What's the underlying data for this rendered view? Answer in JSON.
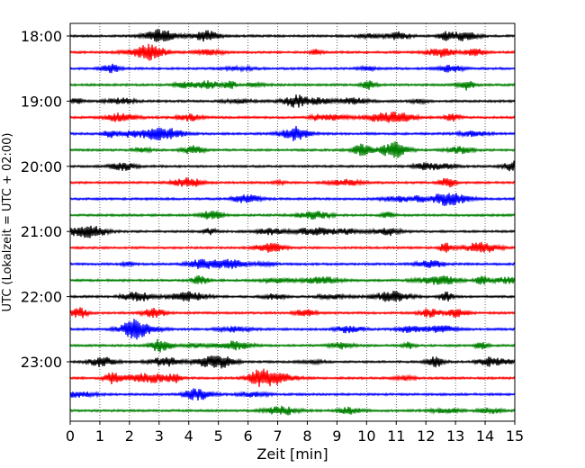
{
  "chart_data": {
    "type": "line",
    "title": "",
    "xlabel": "Zeit  [min]",
    "ylabel": "UTC (Lokalzeit = UTC + 02:00)",
    "xlim": [
      0,
      15
    ],
    "x_ticks": [
      "0",
      "1",
      "2",
      "3",
      "4",
      "5",
      "6",
      "7",
      "8",
      "9",
      "10",
      "11",
      "12",
      "13",
      "14",
      "15"
    ],
    "y_tick_labels": [
      "18:00",
      "19:00",
      "20:00",
      "21:00",
      "22:00",
      "23:00"
    ],
    "trace_interval_minutes": 15,
    "trace_count": 24,
    "trace_colors": [
      "#000000",
      "#ff0000",
      "#0000ff",
      "#008000"
    ],
    "grid_vertical": true,
    "grid_style": "dotted"
  }
}
